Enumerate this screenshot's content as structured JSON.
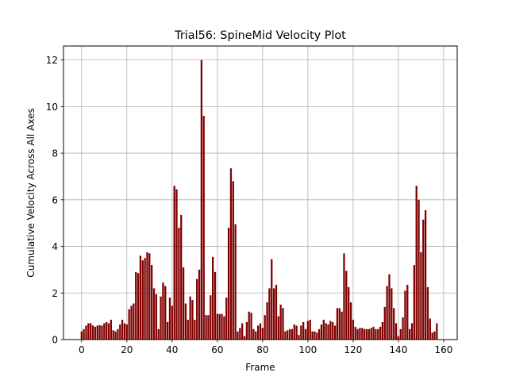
{
  "chart_data": {
    "type": "bar",
    "title": "Trial56: SpineMid Velocity Plot",
    "xlabel": "Frame",
    "ylabel": "Cumulative Velocity Across All Axes",
    "xlim": [
      -8,
      166
    ],
    "ylim": [
      0,
      12.6
    ],
    "xticks": [
      0,
      20,
      40,
      60,
      80,
      100,
      120,
      140,
      160
    ],
    "yticks": [
      0,
      2,
      4,
      6,
      8,
      10,
      12
    ],
    "grid": true,
    "bar_color": "#800000",
    "x": [
      0,
      1,
      2,
      3,
      4,
      5,
      6,
      7,
      8,
      9,
      10,
      11,
      12,
      13,
      14,
      15,
      16,
      17,
      18,
      19,
      20,
      21,
      22,
      23,
      24,
      25,
      26,
      27,
      28,
      29,
      30,
      31,
      32,
      33,
      34,
      35,
      36,
      37,
      38,
      39,
      40,
      41,
      42,
      43,
      44,
      45,
      46,
      47,
      48,
      49,
      50,
      51,
      52,
      53,
      54,
      55,
      56,
      57,
      58,
      59,
      60,
      61,
      62,
      63,
      64,
      65,
      66,
      67,
      68,
      69,
      70,
      71,
      72,
      73,
      74,
      75,
      76,
      77,
      78,
      79,
      80,
      81,
      82,
      83,
      84,
      85,
      86,
      87,
      88,
      89,
      90,
      91,
      92,
      93,
      94,
      95,
      96,
      97,
      98,
      99,
      100,
      101,
      102,
      103,
      104,
      105,
      106,
      107,
      108,
      109,
      110,
      111,
      112,
      113,
      114,
      115,
      116,
      117,
      118,
      119,
      120,
      121,
      122,
      123,
      124,
      125,
      126,
      127,
      128,
      129,
      130,
      131,
      132,
      133,
      134,
      135,
      136,
      137,
      138,
      139,
      140,
      141,
      142,
      143,
      144,
      145,
      146,
      147,
      148,
      149,
      150,
      151,
      152,
      153,
      154,
      155,
      156,
      157
    ],
    "values": [
      0.35,
      0.45,
      0.6,
      0.7,
      0.7,
      0.6,
      0.55,
      0.6,
      0.62,
      0.6,
      0.7,
      0.75,
      0.7,
      0.85,
      0.4,
      0.35,
      0.45,
      0.65,
      0.85,
      0.7,
      0.65,
      1.3,
      1.45,
      1.55,
      2.9,
      2.85,
      3.6,
      3.4,
      3.5,
      3.75,
      3.7,
      3.2,
      2.2,
      1.95,
      0.45,
      1.85,
      2.45,
      2.3,
      0.75,
      1.8,
      1.45,
      6.6,
      6.45,
      4.8,
      5.35,
      3.1,
      1.55,
      0.85,
      1.85,
      1.7,
      0.85,
      2.6,
      3.0,
      12.0,
      9.6,
      1.05,
      1.05,
      1.9,
      3.55,
      2.9,
      1.1,
      1.1,
      1.1,
      1.0,
      1.8,
      4.8,
      7.35,
      6.8,
      4.95,
      0.35,
      0.5,
      0.7,
      0.15,
      0.75,
      1.2,
      1.15,
      0.45,
      0.35,
      0.6,
      0.7,
      0.5,
      1.05,
      1.6,
      2.2,
      3.45,
      2.2,
      2.35,
      1.0,
      1.5,
      1.35,
      0.35,
      0.4,
      0.45,
      0.45,
      0.65,
      0.6,
      0.2,
      0.6,
      0.75,
      0.45,
      0.8,
      0.85,
      0.35,
      0.35,
      0.3,
      0.45,
      0.65,
      0.85,
      0.7,
      0.65,
      0.8,
      0.75,
      0.6,
      1.35,
      1.35,
      1.2,
      3.7,
      2.95,
      2.25,
      1.6,
      0.85,
      0.55,
      0.45,
      0.5,
      0.5,
      0.45,
      0.45,
      0.45,
      0.5,
      0.55,
      0.45,
      0.45,
      0.55,
      0.75,
      1.4,
      2.3,
      2.8,
      2.2,
      1.35,
      0.7,
      0.15,
      0.45,
      0.95,
      2.1,
      2.35,
      0.45,
      0.7,
      3.2,
      6.6,
      6.0,
      3.75,
      5.15,
      5.55,
      2.25,
      0.9,
      0.3,
      0.35,
      0.7
    ]
  }
}
